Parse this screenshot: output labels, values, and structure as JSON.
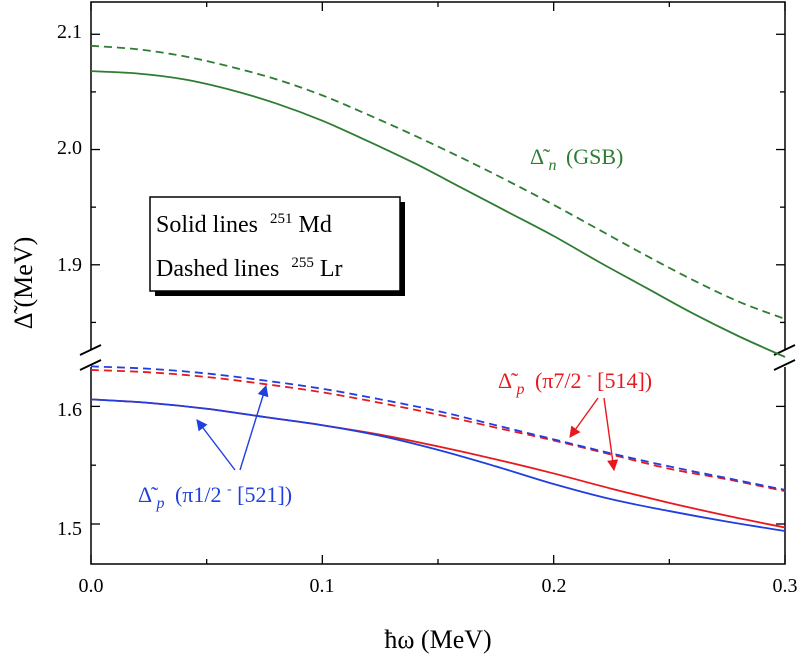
{
  "chart_data": {
    "type": "line",
    "title": "",
    "xlabel": "ħω (MeV)",
    "ylabel": "Δ̃ (MeV)",
    "xlim": [
      0.0,
      0.3
    ],
    "x_ticks": [
      "0.0",
      "0.1",
      "0.2",
      "0.3"
    ],
    "y_axis_break": true,
    "upper_panel": {
      "ylim": [
        1.82,
        2.128
      ],
      "ticks": [
        "1.9",
        "2.0",
        "2.1"
      ]
    },
    "lower_panel": {
      "ylim": [
        1.466,
        1.642
      ],
      "ticks": [
        "1.5",
        "1.6"
      ]
    },
    "series": [
      {
        "name": "Δ̃n (GSB) 251Md",
        "panel": "upper",
        "color": "#2e7d32",
        "dash": "solid",
        "x": [
          0,
          0.02,
          0.04,
          0.06,
          0.08,
          0.1,
          0.12,
          0.14,
          0.16,
          0.18,
          0.2,
          0.22,
          0.24,
          0.26,
          0.28,
          0.3
        ],
        "y": [
          2.068,
          2.066,
          2.061,
          2.052,
          2.04,
          2.025,
          2.007,
          1.988,
          1.967,
          1.946,
          1.925,
          1.902,
          1.88,
          1.858,
          1.838,
          1.82
        ]
      },
      {
        "name": "Δ̃n (GSB) 255Lr",
        "panel": "upper",
        "color": "#2e7d32",
        "dash": "dashed",
        "x": [
          0,
          0.02,
          0.04,
          0.06,
          0.08,
          0.1,
          0.12,
          0.14,
          0.16,
          0.18,
          0.2,
          0.22,
          0.24,
          0.26,
          0.28,
          0.3
        ],
        "y": [
          2.09,
          2.087,
          2.081,
          2.072,
          2.061,
          2.047,
          2.03,
          2.012,
          1.993,
          1.973,
          1.952,
          1.93,
          1.908,
          1.887,
          1.868,
          1.853
        ]
      },
      {
        "name": "Δ̃p (π7/2⁻[514]) 251Md",
        "panel": "lower",
        "color": "#e8191e",
        "dash": "solid",
        "x": [
          0,
          0.025,
          0.05,
          0.075,
          0.1,
          0.125,
          0.15,
          0.175,
          0.2,
          0.225,
          0.25,
          0.275,
          0.3
        ],
        "y": [
          1.606,
          1.603,
          1.598,
          1.591,
          1.584,
          1.576,
          1.566,
          1.555,
          1.543,
          1.53,
          1.518,
          1.507,
          1.497
        ]
      },
      {
        "name": "Δ̃p (π1/2⁻[521]) 251Md",
        "panel": "lower",
        "color": "#1f3fdf",
        "dash": "solid",
        "x": [
          0,
          0.025,
          0.05,
          0.075,
          0.1,
          0.125,
          0.15,
          0.175,
          0.2,
          0.225,
          0.25,
          0.275,
          0.3
        ],
        "y": [
          1.606,
          1.603,
          1.598,
          1.591,
          1.584,
          1.575,
          1.563,
          1.549,
          1.534,
          1.521,
          1.511,
          1.502,
          1.494
        ]
      },
      {
        "name": "Δ̃p (π7/2⁻[514]) 255Lr",
        "panel": "lower",
        "color": "#e8191e",
        "dash": "dashed",
        "x": [
          0,
          0.025,
          0.05,
          0.075,
          0.1,
          0.125,
          0.15,
          0.175,
          0.2,
          0.225,
          0.25,
          0.275,
          0.3
        ],
        "y": [
          1.631,
          1.629,
          1.625,
          1.619,
          1.612,
          1.603,
          1.593,
          1.582,
          1.571,
          1.559,
          1.547,
          1.538,
          1.528
        ]
      },
      {
        "name": "Δ̃p (π1/2⁻[521]) 255Lr",
        "panel": "lower",
        "color": "#1f3fdf",
        "dash": "dashed",
        "x": [
          0,
          0.025,
          0.05,
          0.075,
          0.1,
          0.125,
          0.15,
          0.175,
          0.2,
          0.225,
          0.25,
          0.275,
          0.3
        ],
        "y": [
          1.634,
          1.632,
          1.628,
          1.622,
          1.615,
          1.606,
          1.596,
          1.584,
          1.572,
          1.56,
          1.549,
          1.539,
          1.529
        ]
      }
    ],
    "legend_box": {
      "line1": "Solid lines",
      "line1_nuc_mass": "251",
      "line1_nuc": "Md",
      "line2": "Dashed lines",
      "line2_nuc_mass": "255",
      "line2_nuc": "Lr",
      "placement": "upper-left"
    },
    "annotations": {
      "gsb": {
        "sym": "Δ̃",
        "sub": "n",
        "text": "(GSB)",
        "color": "#2e7d32"
      },
      "red": {
        "sym": "Δ̃",
        "sub": "p",
        "text1": "(π7/2",
        "sup": "-",
        "text2": "[514])",
        "color": "#e8191e"
      },
      "blue": {
        "sym": "Δ̃",
        "sub": "p",
        "text1": "(π1/2",
        "sup": "-",
        "text2": "[521])",
        "color": "#1f3fdf"
      }
    }
  }
}
